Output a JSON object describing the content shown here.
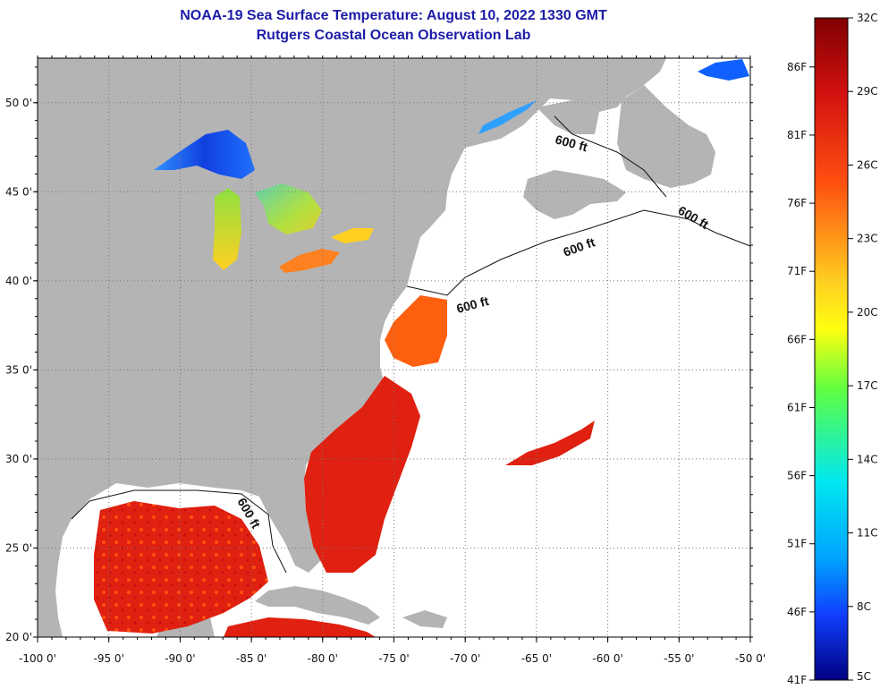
{
  "title": {
    "line1": "NOAA-19 Sea Surface Temperature:  August 10, 2022 1330 GMT",
    "line2": "Rutgers Coastal Ocean Observation Lab"
  },
  "map": {
    "lon_range": [
      -100,
      -50
    ],
    "lat_range": [
      20,
      52.5
    ],
    "x_ticks": [
      "-100 0'",
      "-95 0'",
      "-90 0'",
      "-85 0'",
      "-80 0'",
      "-75 0'",
      "-70 0'",
      "-65 0'",
      "-60 0'",
      "-55 0'",
      "-50 0'"
    ],
    "y_ticks": [
      "50 0'",
      "45 0'",
      "40 0'",
      "35 0'",
      "30 0'",
      "25 0'",
      "20 0'"
    ],
    "grid": "dotted",
    "land_color": "#b4b4b4",
    "no_data_color": "#ffffff",
    "isobath_label": "600 ft"
  },
  "colorbar": {
    "celsius_labels": [
      "32C",
      "29C",
      "26C",
      "23C",
      "20C",
      "17C",
      "14C",
      "11C",
      "8C",
      "5C"
    ],
    "fahrenheit_labels": [
      "86F",
      "81F",
      "76F",
      "71F",
      "66F",
      "61F",
      "56F",
      "51F",
      "46F",
      "41F"
    ],
    "colors": [
      "#800000",
      "#d01010",
      "#ff6010",
      "#ffd020",
      "#ffff10",
      "#50ff50",
      "#00f0f0",
      "#00a0ff",
      "#1040ff",
      "#000080"
    ]
  }
}
